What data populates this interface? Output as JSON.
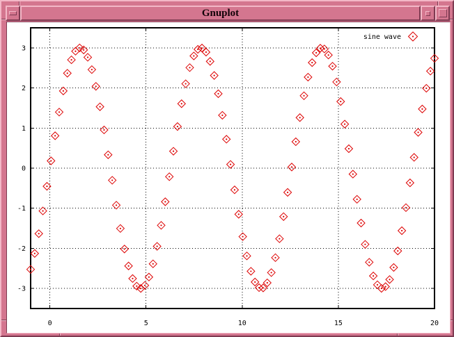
{
  "window": {
    "title": "Gnuplot",
    "buttons": [
      "window-menu-icon",
      "iconify-icon",
      "maximize-icon"
    ],
    "colors": {
      "frame": "#d4768f",
      "frame_highlight": "#f3b8c7",
      "frame_shadow": "#7e3b52",
      "canvas": "#ffffff",
      "plot_foreground": "#000000",
      "marker": "#dd0000"
    }
  },
  "chart_data": {
    "type": "scatter",
    "title": "",
    "xlabel": "",
    "ylabel": "",
    "legend": [
      {
        "label": "sine wave",
        "marker": "open-diamond-with-center-dot",
        "color": "#dd0000"
      }
    ],
    "legend_position": "top-right-inside",
    "series_function": "y = 3*sin(x)",
    "series_function_js": "3*Math.sin(x)",
    "x_start": -1,
    "x_end": 20,
    "samples": 100,
    "xlim": [
      -1,
      20
    ],
    "ylim": [
      -3.5,
      3.5
    ],
    "xticks": [
      0,
      5,
      10,
      15,
      20
    ],
    "yticks": [
      -3,
      -2,
      -1,
      0,
      1,
      2,
      3
    ],
    "grid": "dotted",
    "tick_mirroring": true,
    "border": true
  }
}
